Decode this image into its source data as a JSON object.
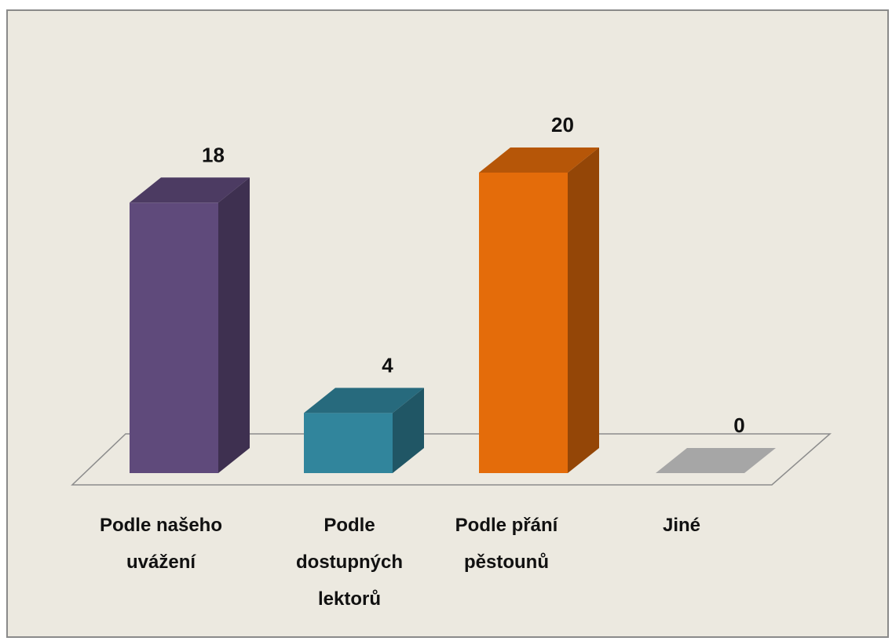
{
  "chart_data": {
    "type": "bar3d",
    "categories": [
      "Podle našeho uvážení",
      "Podle dostupných lektorů",
      "Podle přání pěstounů",
      "Jiné"
    ],
    "values": [
      18,
      4,
      20,
      0
    ],
    "colors": [
      "#5f4a7b",
      "#31859c",
      "#e46c0a",
      "#a6a6a6"
    ]
  }
}
